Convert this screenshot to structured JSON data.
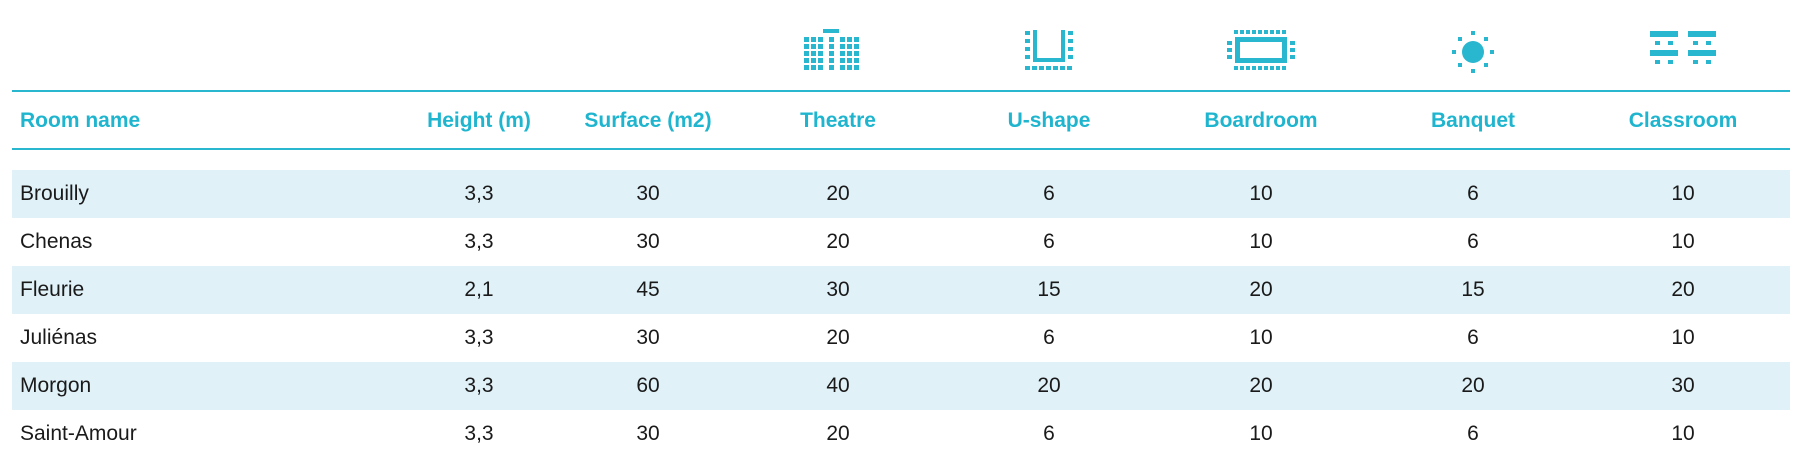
{
  "colors": {
    "accent": "#1fb5cf",
    "rule": "#29b7cf",
    "row_shade": "#e0f1f8",
    "text": "#1a1a1a"
  },
  "icons": [
    "theatre-seating-icon",
    "u-shape-seating-icon",
    "boardroom-seating-icon",
    "banquet-seating-icon",
    "classroom-seating-icon"
  ],
  "table": {
    "headers": [
      "Room name",
      "Height (m)",
      "Surface (m2)",
      "Theatre",
      "U-shape",
      "Boardroom",
      "Banquet",
      "Classroom"
    ],
    "rows": [
      [
        "Brouilly",
        "3,3",
        "30",
        "20",
        "6",
        "10",
        "6",
        "10"
      ],
      [
        "Chenas",
        "3,3",
        "30",
        "20",
        "6",
        "10",
        "6",
        "10"
      ],
      [
        "Fleurie",
        "2,1",
        "45",
        "30",
        "15",
        "20",
        "15",
        "20"
      ],
      [
        "Juliénas",
        "3,3",
        "30",
        "20",
        "6",
        "10",
        "6",
        "10"
      ],
      [
        "Morgon",
        "3,3",
        "60",
        "40",
        "20",
        "20",
        "20",
        "30"
      ],
      [
        "Saint-Amour",
        "3,3",
        "30",
        "20",
        "6",
        "10",
        "6",
        "10"
      ]
    ]
  }
}
